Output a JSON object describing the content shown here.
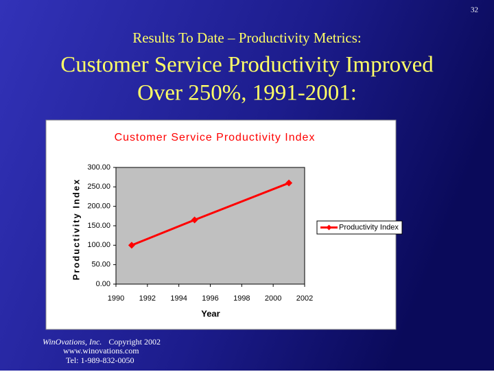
{
  "slide": {
    "page_number": "32",
    "subtitle": "Results To Date – Productivity Metrics:",
    "title_lines": [
      "Customer Service Productivity Improved",
      "Over 250%, 1991-2001:"
    ],
    "footer": {
      "company": "WinOvations, Inc.",
      "copyright": "Copyright 2002",
      "website": "www.winovations.com",
      "phone": "Tel:  1-989-832-0050"
    }
  },
  "chart_data": {
    "type": "line",
    "title": "Customer Service Productivity Index",
    "x_label": "Year",
    "y_label": "Productivity Index",
    "x": [
      1991,
      1995,
      2001
    ],
    "series": [
      {
        "name": "Productivity Index",
        "color": "#ff0000",
        "values": [
          100,
          165,
          260
        ]
      }
    ],
    "xlim": [
      1990,
      2002
    ],
    "xticks": [
      1990,
      1992,
      1994,
      1996,
      1998,
      2000,
      2002
    ],
    "ylim": [
      0,
      300
    ],
    "yticks": [
      {
        "value": 0,
        "label": "0.00"
      },
      {
        "value": 50,
        "label": "50.00"
      },
      {
        "value": 100,
        "label": "100.00"
      },
      {
        "value": 150,
        "label": "150.00"
      },
      {
        "value": 200,
        "label": "200.00"
      },
      {
        "value": 250,
        "label": "250.00"
      },
      {
        "value": 300,
        "label": "300.00"
      }
    ],
    "grid": false,
    "legend": "right",
    "plot_background": "#c0c0c0"
  }
}
